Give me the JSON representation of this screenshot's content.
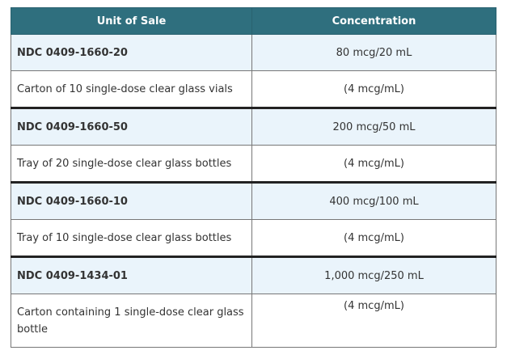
{
  "table": {
    "headers": [
      "Unit of Sale",
      "Concentration"
    ],
    "rows": [
      {
        "unit": "NDC 0409-1660-20",
        "concentration": "80 mcg/20 mL"
      },
      {
        "unit": "Carton of 10 single-dose clear glass vials",
        "concentration": "(4 mcg/mL)"
      },
      {
        "unit": "NDC 0409-1660-50",
        "concentration": "200 mcg/50 mL"
      },
      {
        "unit": "Tray of 20 single-dose clear glass bottles",
        "concentration": "(4 mcg/mL)"
      },
      {
        "unit": "NDC 0409-1660-10",
        "concentration": "400 mcg/100 mL"
      },
      {
        "unit": "Tray of 10 single-dose clear glass bottles",
        "concentration": "(4 mcg/mL)"
      },
      {
        "unit": "NDC 0409-1434-01",
        "concentration": "1,000 mcg/250 mL"
      },
      {
        "unit": "Carton containing 1 single-dose clear glass bottle",
        "concentration": "(4 mcg/mL)"
      }
    ]
  },
  "colors": {
    "header_bg": "#2f6f7e",
    "header_text": "#ffffff",
    "ndc_row_bg": "#eaf4fb",
    "desc_row_bg": "#ffffff"
  }
}
